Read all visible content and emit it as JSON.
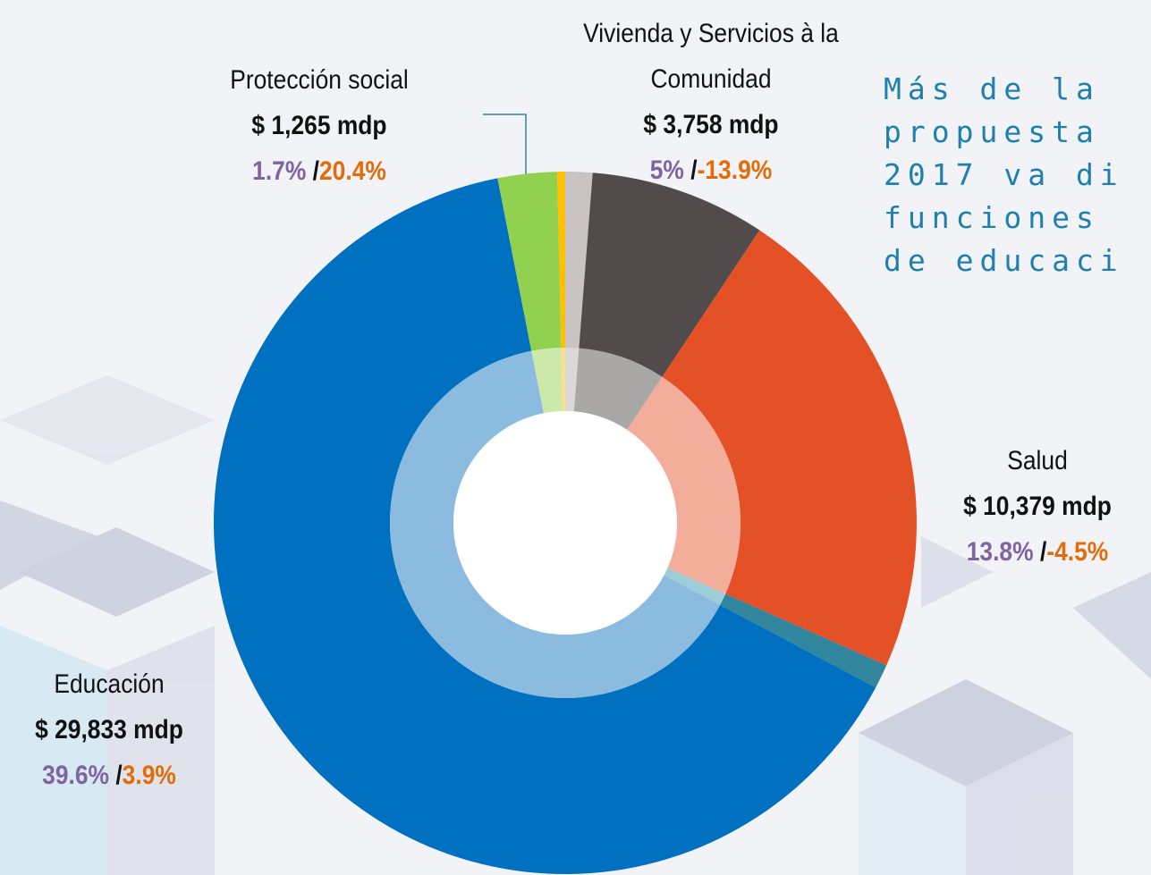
{
  "chart_data": {
    "type": "donut",
    "categories": [
      null,
      "Vivienda y Servicios à la Comunidad",
      "Salud",
      null,
      "Educación",
      "Protección social",
      null
    ],
    "values": [
      580,
      3758,
      10379,
      520,
      29833,
      1265,
      170
    ],
    "value_labels": [
      null,
      "$ 3,758 mdp",
      "$ 10,379 mdp",
      null,
      "$ 29,833 mdp",
      "$ 1,265 mdp",
      null
    ],
    "share_labels": [
      null,
      "5%",
      "13.8%",
      null,
      "39.6%",
      "1.7%",
      null
    ],
    "change_labels": [
      null,
      "-13.9%",
      "-4.5%",
      null,
      "3.9%",
      "20.4%",
      null
    ],
    "separator": "/",
    "colors": [
      "#c9c3c3",
      "#524b4c",
      "#e55127",
      "#31859c",
      "#0070c0",
      "#92d050",
      "#ffc000"
    ],
    "inner_colors": [
      "#dcd8d8",
      "#aaa7a7",
      "#f3ad9b",
      "#9dcdd6",
      "#8cbbe0",
      "#cde9a9",
      "#ffe08a"
    ]
  },
  "side_text": [
    "Más de la",
    "propuesta",
    "2017 va di",
    "funciones",
    "de educaci"
  ]
}
